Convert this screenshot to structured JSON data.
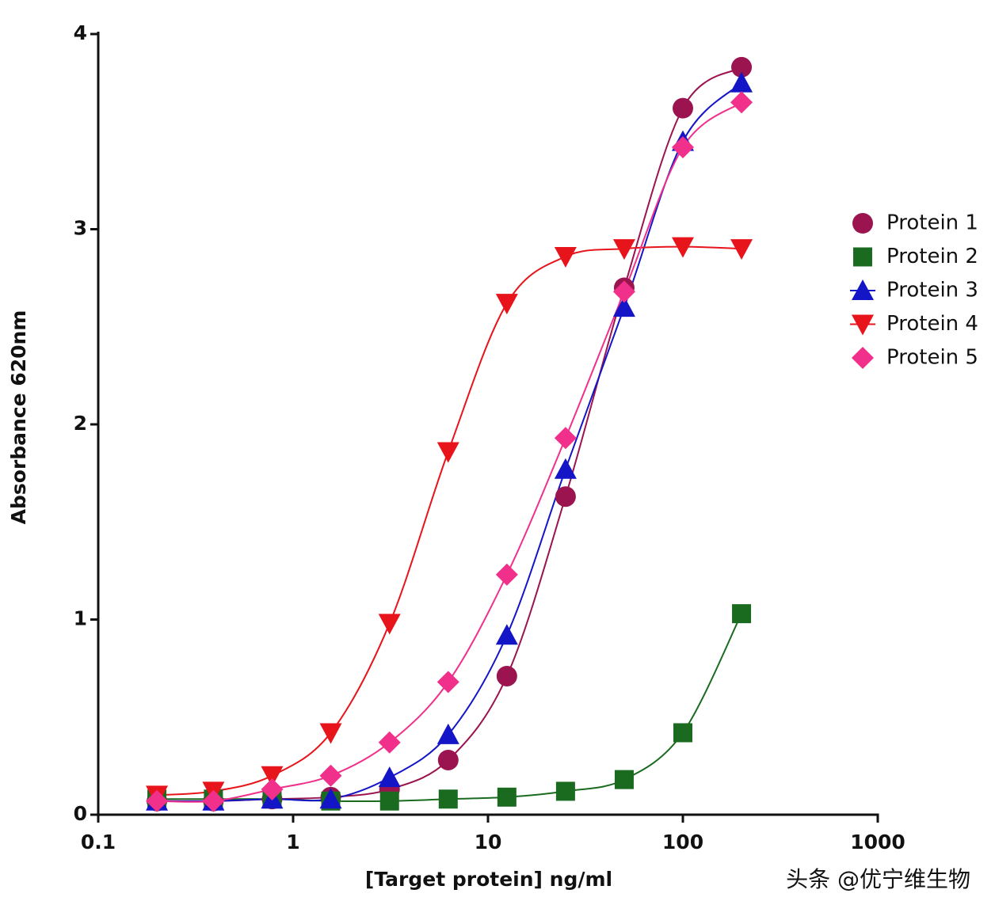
{
  "chart_data": {
    "type": "line",
    "xlabel": "[Target protein] ng/ml",
    "ylabel": "Absorbance 620nm",
    "x": [
      0.2,
      0.39,
      0.78,
      1.56,
      3.125,
      6.25,
      12.5,
      25,
      50,
      100,
      200
    ],
    "xscale": "log",
    "xlim": [
      0.1,
      1000
    ],
    "xticks": [
      0.1,
      1,
      10,
      100,
      1000
    ],
    "ylim": [
      0,
      4
    ],
    "yticks": [
      0,
      1,
      2,
      3,
      4
    ],
    "legend": "right",
    "series": [
      {
        "name": "Protein 1",
        "color": "#9b1450",
        "marker": "circle",
        "values": [
          0.07,
          0.07,
          0.08,
          0.09,
          0.13,
          0.28,
          0.71,
          1.63,
          2.7,
          3.62,
          3.83
        ]
      },
      {
        "name": "Protein 2",
        "color": "#1a6b1f",
        "marker": "square",
        "values": [
          0.08,
          0.08,
          0.08,
          0.07,
          0.07,
          0.08,
          0.09,
          0.12,
          0.18,
          0.42,
          1.03
        ]
      },
      {
        "name": "Protein 3",
        "color": "#1515c8",
        "marker": "triangle-up",
        "values": [
          0.07,
          0.07,
          0.08,
          0.08,
          0.19,
          0.41,
          0.92,
          1.77,
          2.6,
          3.45,
          3.75
        ]
      },
      {
        "name": "Protein 4",
        "color": "#e8141b",
        "marker": "triangle-down",
        "values": [
          0.1,
          0.12,
          0.2,
          0.42,
          0.98,
          1.86,
          2.62,
          2.86,
          2.9,
          2.91,
          2.9
        ]
      },
      {
        "name": "Protein 5",
        "color": "#f0308a",
        "marker": "diamond",
        "values": [
          0.07,
          0.07,
          0.13,
          0.2,
          0.37,
          0.68,
          1.23,
          1.93,
          2.68,
          3.42,
          3.65
        ]
      }
    ]
  },
  "watermark": "头条 @优宁维生物"
}
